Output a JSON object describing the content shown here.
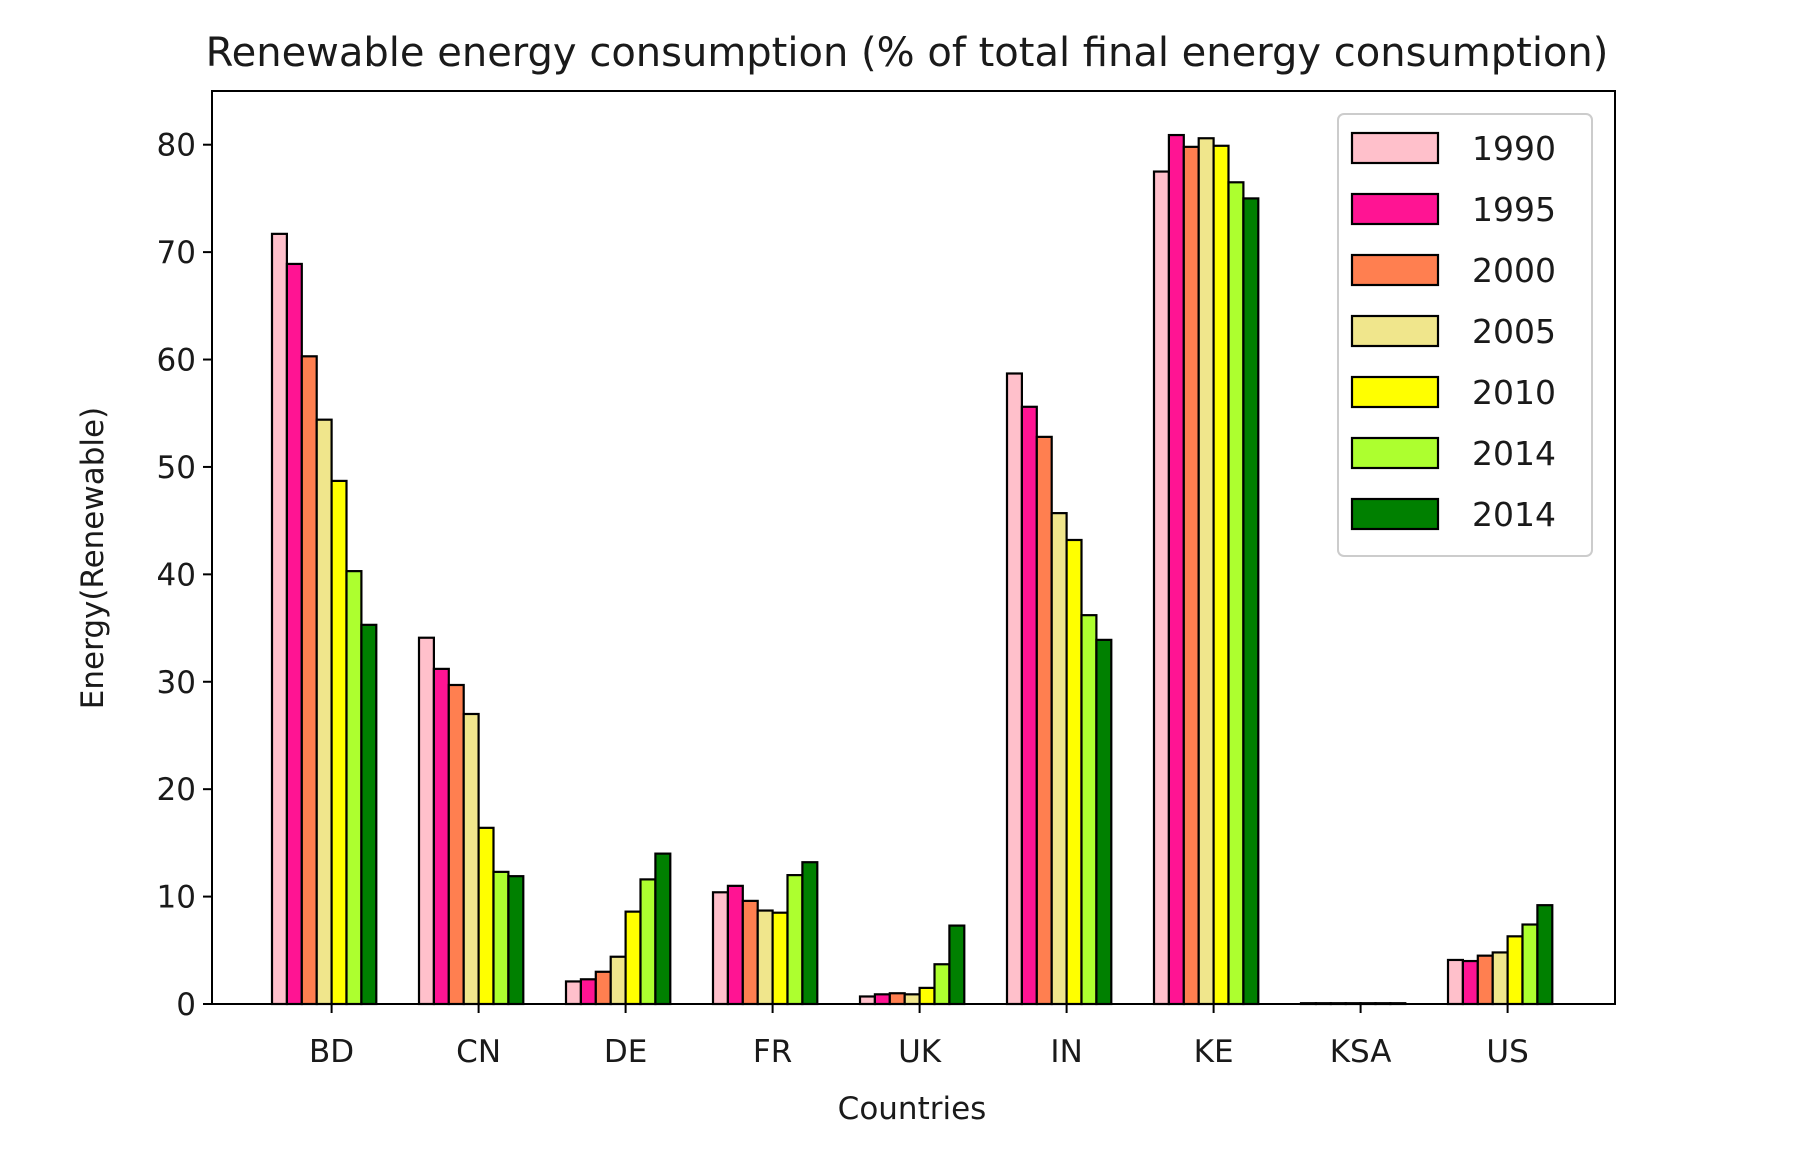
{
  "chart_data": {
    "type": "bar",
    "title": "Renewable energy consumption (% of total final energy consumption)",
    "xlabel": "Countries",
    "ylabel": "Energy(Renewable)",
    "ylim": [
      0,
      85
    ],
    "yticks": [
      0,
      10,
      20,
      30,
      40,
      50,
      60,
      70,
      80
    ],
    "grid": false,
    "legend_position": "top-right",
    "categories": [
      "BD",
      "CN",
      "DE",
      "FR",
      "UK",
      "IN",
      "KE",
      "KSA",
      "US"
    ],
    "series": [
      {
        "name": "1990",
        "color": "#FFC0CB",
        "values": [
          71.7,
          34.1,
          2.1,
          10.4,
          0.7,
          58.7,
          77.5,
          0.02,
          4.1
        ]
      },
      {
        "name": "1995",
        "color": "#FF1493",
        "values": [
          68.9,
          31.2,
          2.3,
          11.0,
          0.9,
          55.6,
          80.9,
          0.01,
          4.0
        ]
      },
      {
        "name": "2000",
        "color": "#FF7F50",
        "values": [
          60.3,
          29.7,
          3.0,
          9.6,
          1.0,
          52.8,
          79.8,
          0.01,
          4.5
        ]
      },
      {
        "name": "2005",
        "color": "#F0E68C",
        "values": [
          54.4,
          27.0,
          4.4,
          8.7,
          0.9,
          45.7,
          80.6,
          0.01,
          4.8
        ]
      },
      {
        "name": "2010",
        "color": "#FFFF00",
        "values": [
          48.7,
          16.4,
          8.6,
          8.5,
          1.5,
          43.2,
          79.9,
          0.01,
          6.3
        ]
      },
      {
        "name": "2014",
        "color": "#ADFF2F",
        "values": [
          40.3,
          12.3,
          11.6,
          12.0,
          3.7,
          36.2,
          76.5,
          0.01,
          7.4
        ]
      },
      {
        "name": "2014",
        "color": "#008000",
        "values": [
          35.3,
          11.9,
          14.0,
          13.2,
          7.3,
          33.9,
          75.0,
          0.01,
          9.2
        ]
      }
    ]
  }
}
